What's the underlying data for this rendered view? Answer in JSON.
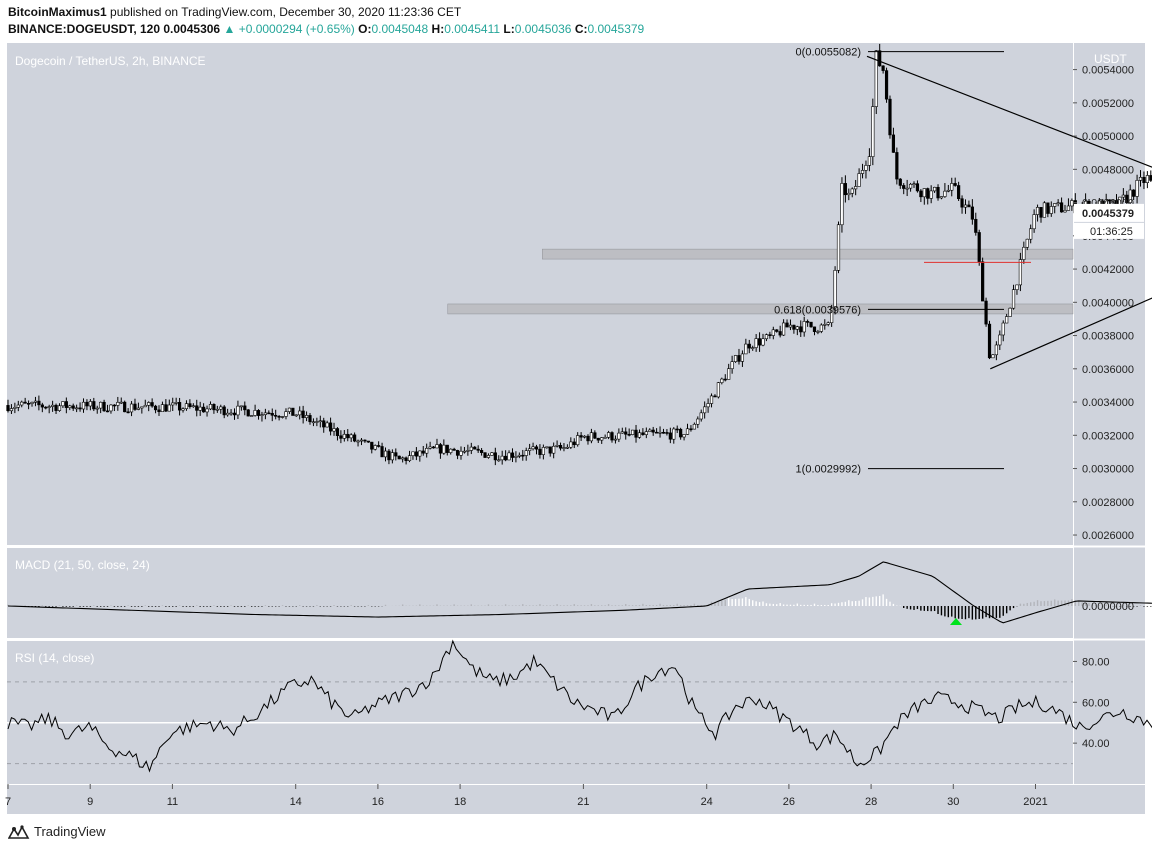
{
  "header": {
    "author": "BitcoinMaximus1",
    "published_text": "published on TradingView.com, December 30, 2020 11:23:36 CET",
    "symbol": "BINANCE:DOGEUSDT, 120",
    "last": "0.0045306",
    "change_arrow": "▲",
    "change": "+0.0000294 (+0.65%)",
    "o_label": "O:",
    "o_value": "0.0045048",
    "h_label": "H:",
    "h_value": "0.0045411",
    "l_label": "L:",
    "l_value": "0.0045036",
    "c_label": "C:",
    "c_value": "0.0045379"
  },
  "main_pane": {
    "title": "Dogecoin / TetherUS, 2h, BINANCE",
    "currency": "USDT",
    "price_label": "0.0045379",
    "countdown": "01:36:25"
  },
  "macd_pane": {
    "title": "MACD (21, 50, close, 24)",
    "zero_label": "0.0000000"
  },
  "rsi_pane": {
    "title": "RSI (14, close)"
  },
  "footer": {
    "brand": "TradingView"
  },
  "colors": {
    "pane_bg": "#cfd3dc",
    "line": "#000000",
    "up": "#26a69a",
    "red_line": "#e0312f",
    "green_arrow": "#00e31d",
    "zone": "#bdbec3"
  },
  "chart_data": [
    {
      "type": "candlestick",
      "title": "Dogecoin / TetherUS, 2h, BINANCE",
      "ylabel": "USDT",
      "ylim": [
        0.00254,
        0.00556
      ],
      "y_ticks": [
        "0.0054000",
        "0.0052000",
        "0.0050000",
        "0.0048000",
        "0.0046000",
        "0.0044000",
        "0.0042000",
        "0.0040000",
        "0.0038000",
        "0.0036000",
        "0.0034000",
        "0.0032000",
        "0.0030000",
        "0.0028000",
        "0.0026000"
      ],
      "x_ticks": [
        "7",
        "9",
        "11",
        "14",
        "16",
        "18",
        "21",
        "24",
        "26",
        "28",
        "30",
        "2021"
      ],
      "price_path": [
        [
          0,
          0.00338
        ],
        [
          4,
          0.00337
        ],
        [
          7,
          0.00333
        ],
        [
          9.5,
          0.00305
        ],
        [
          10.5,
          0.00312
        ],
        [
          12,
          0.00308
        ],
        [
          13.5,
          0.00312
        ],
        [
          14,
          0.00319
        ],
        [
          16.5,
          0.00321
        ],
        [
          17,
          0.00338
        ],
        [
          17.5,
          0.00358
        ],
        [
          18,
          0.00375
        ],
        [
          18.5,
          0.00378
        ],
        [
          19,
          0.00386
        ],
        [
          20,
          0.00385
        ],
        [
          20.3,
          0.0047
        ],
        [
          20.5,
          0.00462
        ],
        [
          21,
          0.00495
        ],
        [
          21.1,
          0.00548
        ],
        [
          21.3,
          0.0054
        ],
        [
          21.6,
          0.00475
        ],
        [
          22,
          0.0047
        ],
        [
          22.5,
          0.00465
        ],
        [
          23,
          0.00468
        ],
        [
          23.5,
          0.0045
        ],
        [
          23.9,
          0.00365
        ],
        [
          24.1,
          0.00375
        ],
        [
          24.5,
          0.0041
        ],
        [
          25,
          0.00455
        ],
        [
          26,
          0.00458
        ],
        [
          27,
          0.00458
        ],
        [
          27.7,
          0.00475
        ],
        [
          28,
          0.00465
        ],
        [
          28.5,
          0.00468
        ],
        [
          29,
          0.0046
        ],
        [
          29.6,
          0.00436
        ],
        [
          30.2,
          0.00452
        ],
        [
          30.5,
          0.00453
        ]
      ],
      "fibonacci": [
        {
          "level": "0",
          "value": 0.0055082,
          "label": "0(0.0055082)"
        },
        {
          "level": "0.618",
          "value": 0.0039576,
          "label": "0.618(0.0039576)"
        },
        {
          "level": "1",
          "value": 0.0029992,
          "label": "1(0.0029992)"
        }
      ],
      "triangle": {
        "upper": [
          [
            20.9,
            0.00548
          ],
          [
            31.3,
            0.00448
          ]
        ],
        "lower": [
          [
            23.9,
            0.0036
          ],
          [
            31.3,
            0.0044
          ]
        ]
      },
      "horizontal_zones": [
        [
          0.00426,
          0.00432
        ],
        [
          0.00393,
          0.00399
        ]
      ],
      "support_line": 0.00424
    },
    {
      "type": "macd",
      "title": "MACD (21, 50, close, 24)",
      "params": [
        21,
        50,
        "close",
        24
      ],
      "zero_label": "0.0000000",
      "macd_path": [
        [
          0,
          0.0
        ],
        [
          3,
          -0.5
        ],
        [
          6,
          -1.0
        ],
        [
          9,
          -1.3
        ],
        [
          12,
          -1.0
        ],
        [
          15,
          -0.5
        ],
        [
          17,
          0.0
        ],
        [
          18,
          2.0
        ],
        [
          20,
          2.5
        ],
        [
          20.7,
          3.5
        ],
        [
          21.3,
          5.2
        ],
        [
          22.5,
          3.5
        ],
        [
          23.5,
          0.0
        ],
        [
          24.2,
          -2.0
        ],
        [
          25,
          -0.8
        ],
        [
          26,
          0.6
        ],
        [
          28,
          0.3
        ],
        [
          29.5,
          -0.6
        ],
        [
          30.5,
          0.0
        ]
      ]
    },
    {
      "type": "line",
      "title": "RSI (14, close)",
      "ylim": [
        20,
        90
      ],
      "y_ticks": [
        "80.00",
        "60.00",
        "40.00"
      ],
      "bands": [
        70,
        50,
        30
      ],
      "values": [
        50,
        48,
        52,
        44,
        48,
        38,
        34,
        28,
        45,
        48,
        50,
        46,
        52,
        60,
        68,
        71,
        60,
        52,
        58,
        62,
        66,
        72,
        90,
        76,
        70,
        72,
        80,
        70,
        60,
        56,
        52,
        66,
        75,
        78,
        55,
        45,
        58,
        62,
        55,
        48,
        40,
        44,
        30,
        35,
        50,
        58,
        62,
        60,
        56,
        52,
        58,
        60,
        55,
        48,
        52,
        56,
        52,
        47,
        42,
        40,
        48,
        54,
        51
      ]
    }
  ]
}
